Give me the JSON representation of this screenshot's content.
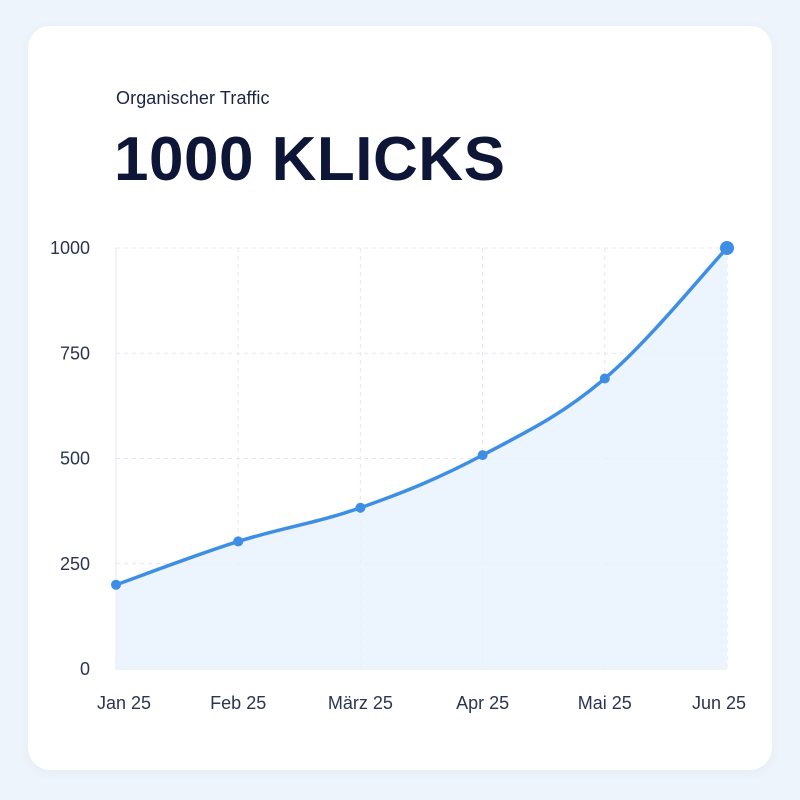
{
  "header": {
    "subtitle": "Organischer Traffic",
    "title": "1000 KLICKS"
  },
  "colors": {
    "line": "#3f8ee6",
    "fill": "#e9f2fd",
    "grid": "#e3e7ee",
    "text": "#0d1636"
  },
  "chart_data": {
    "type": "line",
    "title": "",
    "xlabel": "",
    "ylabel": "",
    "categories": [
      "Jan 25",
      "Feb 25",
      "März 25",
      "Apr 25",
      "Mai 25",
      "Jun 25"
    ],
    "series": [
      {
        "values": [
          200,
          303,
          383,
          508,
          690,
          1000
        ]
      }
    ],
    "ylim": [
      0,
      1000
    ],
    "yticks": [
      0,
      250,
      500,
      750,
      1000
    ],
    "grid": true,
    "area_fill": true,
    "legend": "none"
  }
}
